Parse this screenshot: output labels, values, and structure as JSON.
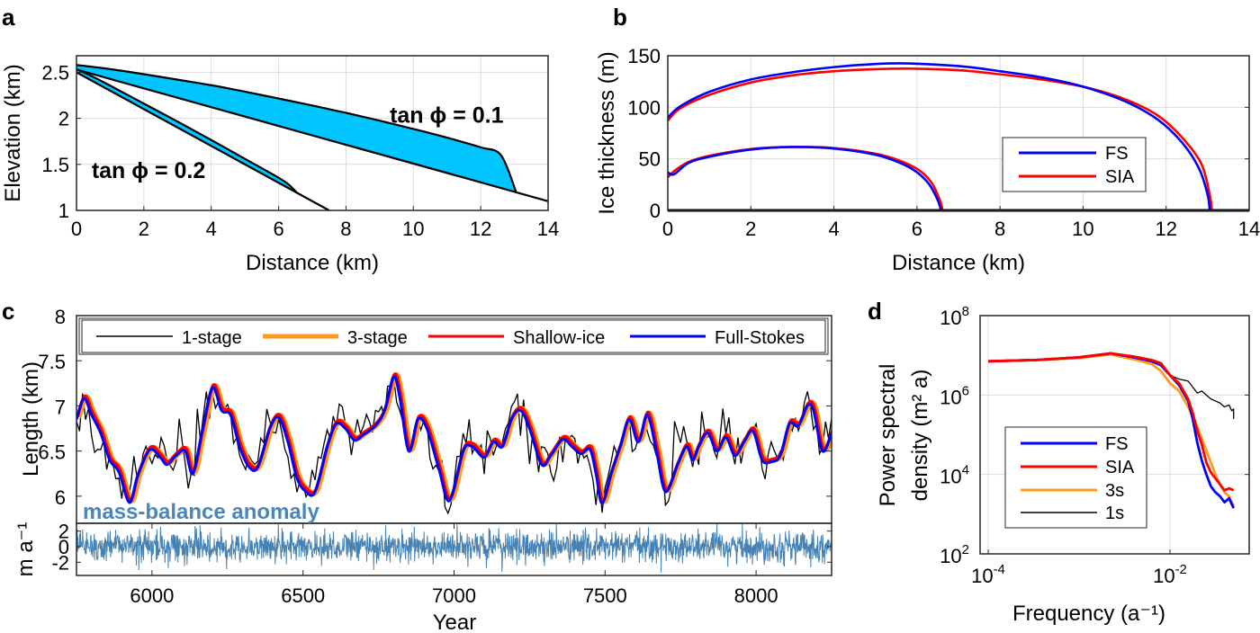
{
  "figure": {
    "panel_labels": [
      "a",
      "b",
      "c",
      "d"
    ]
  },
  "chart_data": [
    {
      "panel": "a",
      "type": "area",
      "xlabel": "Distance (km)",
      "ylabel": "Elevation (km)",
      "xlim": [
        0,
        14
      ],
      "ylim": [
        1,
        2.68
      ],
      "xticks": [
        0,
        2,
        4,
        6,
        8,
        10,
        12,
        14
      ],
      "xtick_labels": [
        "0",
        "2",
        "4",
        "6",
        "8",
        "10",
        "12",
        "14"
      ],
      "yticks": [
        1,
        1.5,
        2,
        2.5
      ],
      "ytick_labels": [
        "1",
        "1.5",
        "2",
        "2.5"
      ],
      "grid": true,
      "fill_color": "#00c5ff",
      "annotations": [
        {
          "text": "tan ϕ = 0.1",
          "x": 9.3,
          "y": 1.95
        },
        {
          "text": "tan ϕ = 0.2",
          "x": 0.45,
          "y": 1.35
        }
      ],
      "glaciers": [
        {
          "name": "tan phi = 0.1",
          "bed": {
            "x": [
              0,
              14
            ],
            "y": [
              2.53,
              1.1
            ]
          },
          "surface": {
            "x": [
              0,
              1,
              2,
              3,
              4,
              5,
              6,
              7,
              8,
              9,
              10,
              11,
              12,
              12.6,
              13.05
            ],
            "y": [
              2.58,
              2.535,
              2.48,
              2.42,
              2.36,
              2.29,
              2.215,
              2.14,
              2.06,
              1.975,
              1.885,
              1.79,
              1.685,
              1.6,
              1.2
            ]
          }
        },
        {
          "name": "tan phi = 0.2",
          "bed": {
            "x": [
              0,
              7.5
            ],
            "y": [
              2.5,
              1.0
            ]
          },
          "surface": {
            "x": [
              0,
              0.5,
              1,
              2,
              3,
              4,
              5,
              6,
              6.3,
              6.55
            ],
            "y": [
              2.535,
              2.45,
              2.355,
              2.16,
              1.965,
              1.765,
              1.56,
              1.355,
              1.28,
              1.19
            ]
          }
        }
      ]
    },
    {
      "panel": "b",
      "type": "line",
      "xlabel": "Distance (km)",
      "ylabel": "Ice thickness (m)",
      "xlim": [
        0,
        14
      ],
      "ylim": [
        0,
        150
      ],
      "xticks": [
        0,
        2,
        4,
        6,
        8,
        10,
        12,
        14
      ],
      "xtick_labels": [
        "0",
        "2",
        "4",
        "6",
        "8",
        "10",
        "12",
        "14"
      ],
      "yticks": [
        0,
        50,
        100,
        150
      ],
      "ytick_labels": [
        "0",
        "50",
        "100",
        "150"
      ],
      "grid": true,
      "legend": {
        "placement": "lower-right",
        "entries": [
          {
            "label": "FS",
            "color": "#0000ff"
          },
          {
            "label": "SIA",
            "color": "#ff0000"
          }
        ]
      },
      "series": [
        {
          "name": "FS (tan phi = 0.1)",
          "color": "#0000ff",
          "x": [
            0,
            0.3,
            1,
            2,
            3,
            4,
            5,
            5.8,
            7,
            8,
            9,
            10,
            11,
            11.8,
            12.4,
            12.8,
            13.0,
            13.05
          ],
          "y": [
            90,
            101,
            115,
            127,
            134,
            139,
            142,
            142.5,
            140,
            135,
            129,
            120,
            106,
            88,
            65,
            40,
            15,
            0
          ]
        },
        {
          "name": "SIA (tan phi = 0.1)",
          "color": "#ff0000",
          "x": [
            0,
            0.3,
            1,
            2,
            3,
            4,
            5,
            5.8,
            7,
            8,
            9,
            10,
            11,
            11.8,
            12.4,
            12.85,
            13.05,
            13.1
          ],
          "y": [
            87,
            99,
            112,
            124,
            131,
            135,
            137,
            137.5,
            136,
            132,
            127,
            120,
            108,
            92,
            70,
            45,
            15,
            0
          ]
        },
        {
          "name": "FS (tan phi = 0.2)",
          "color": "#0000ff",
          "x": [
            0,
            0.15,
            0.5,
            1,
            2,
            3,
            4,
            5,
            5.6,
            6.0,
            6.3,
            6.5,
            6.58
          ],
          "y": [
            37,
            35,
            46,
            52,
            59,
            61.5,
            60,
            54,
            46,
            37,
            25,
            10,
            0
          ]
        },
        {
          "name": "SIA (tan phi = 0.2)",
          "color": "#ff0000",
          "x": [
            0,
            0.15,
            0.5,
            1,
            2,
            3,
            4,
            5,
            5.6,
            6.05,
            6.35,
            6.55,
            6.62
          ],
          "y": [
            32,
            38,
            47,
            53,
            59.5,
            61.5,
            60.5,
            55,
            48,
            39,
            27,
            10,
            0
          ]
        }
      ]
    },
    {
      "panel": "c",
      "type": "line",
      "xlabel": "Year",
      "ylabel": "Length (km)",
      "xlim": [
        5750,
        8250
      ],
      "ylim": [
        5.7,
        8
      ],
      "xticks": [
        6000,
        6500,
        7000,
        7500,
        8000
      ],
      "xtick_labels": [
        "6000",
        "6500",
        "7000",
        "7500",
        "8000"
      ],
      "yticks": [
        6,
        6.5,
        7,
        7.5,
        8
      ],
      "ytick_labels": [
        "6",
        "6.5",
        "7",
        "7.5",
        "8"
      ],
      "grid": false,
      "legend": {
        "placement": "top",
        "entries": [
          {
            "label": "1-stage",
            "color": "#000000"
          },
          {
            "label": "3-stage",
            "color": "#ff9a1f"
          },
          {
            "label": "Shallow-ice",
            "color": "#ff0000"
          },
          {
            "label": "Full-Stokes",
            "color": "#0000ff"
          }
        ]
      },
      "full_stokes": {
        "x": [
          5750,
          5775,
          5800,
          5830,
          5860,
          5890,
          5925,
          5950,
          5980,
          6000,
          6030,
          6050,
          6080,
          6110,
          6135,
          6165,
          6200,
          6230,
          6260,
          6290,
          6320,
          6350,
          6390,
          6420,
          6450,
          6480,
          6510,
          6540,
          6580,
          6610,
          6640,
          6670,
          6700,
          6740,
          6770,
          6800,
          6820,
          6850,
          6880,
          6910,
          6950,
          6985,
          7030,
          7060,
          7100,
          7130,
          7160,
          7190,
          7220,
          7250,
          7290,
          7320,
          7360,
          7390,
          7420,
          7450,
          7470,
          7490,
          7520,
          7550,
          7580,
          7610,
          7640,
          7670,
          7700,
          7740,
          7770,
          7790,
          7810,
          7840,
          7870,
          7900,
          7930,
          7960,
          7990,
          8020,
          8050,
          8080,
          8110,
          8140,
          8170,
          8190,
          8220,
          8250
        ],
        "y": [
          6.85,
          7.08,
          6.9,
          6.7,
          6.4,
          6.27,
          5.93,
          6.2,
          6.45,
          6.52,
          6.42,
          6.35,
          6.45,
          6.5,
          6.25,
          6.7,
          7.2,
          6.95,
          6.9,
          6.55,
          6.33,
          6.32,
          6.75,
          6.87,
          6.6,
          6.2,
          6.05,
          6.05,
          6.55,
          6.8,
          6.75,
          6.62,
          6.68,
          6.78,
          6.95,
          7.32,
          7.1,
          6.5,
          6.85,
          6.75,
          6.3,
          5.95,
          6.5,
          6.55,
          6.43,
          6.6,
          6.55,
          6.85,
          6.95,
          6.75,
          6.35,
          6.45,
          6.63,
          6.55,
          6.47,
          6.52,
          6.25,
          5.92,
          6.25,
          6.55,
          6.85,
          6.6,
          6.9,
          6.5,
          6.05,
          6.35,
          6.55,
          6.4,
          6.55,
          6.7,
          6.5,
          6.65,
          6.45,
          6.6,
          6.72,
          6.4,
          6.38,
          6.45,
          6.8,
          6.78,
          7.0,
          6.95,
          6.5,
          6.7
        ]
      },
      "shallow_ice_offset_km": 0.03,
      "three_stage_lag_years": 8,
      "one_stage_noise_amplitude_km": 0.22,
      "annotation": "mass-balance anomaly",
      "mass_balance": {
        "ylabel": "m a⁻¹",
        "ylim": [
          -3.7,
          3.0
        ],
        "yticks": [
          -2,
          0,
          2
        ],
        "ytick_labels": [
          "-2",
          "0",
          "2"
        ],
        "color": "#4682b4",
        "std_m_per_a": 1.0
      }
    },
    {
      "panel": "d",
      "type": "line",
      "xscale": "log",
      "yscale": "log",
      "xlabel": "Frequency (a⁻¹)",
      "ylabel_line1": "Power spectral",
      "ylabel_line2": "density (m² a)",
      "xlim_log10": [
        -4.05,
        -0.98
      ],
      "ylim_log10": [
        2,
        8
      ],
      "xticks_log10": [
        -4,
        -2
      ],
      "xtick_labels": [
        {
          "base": "10",
          "exp": "-4"
        },
        {
          "base": "10",
          "exp": "-2"
        }
      ],
      "yticks_log10": [
        2,
        4,
        6,
        8
      ],
      "ytick_labels": [
        {
          "base": "10",
          "exp": "2"
        },
        {
          "base": "10",
          "exp": "4"
        },
        {
          "base": "10",
          "exp": "6"
        },
        {
          "base": "10",
          "exp": "8"
        }
      ],
      "grid": true,
      "legend": {
        "placement": "lower-left",
        "entries": [
          {
            "label": "FS",
            "color": "#0000ff"
          },
          {
            "label": "SIA",
            "color": "#ff0000"
          },
          {
            "label": "3s",
            "color": "#ff9a1f"
          },
          {
            "label": "1s",
            "color": "#000000"
          }
        ]
      },
      "series": [
        {
          "name": "FS",
          "color": "#0000ff",
          "log10_f": [
            -4,
            -3.5,
            -3,
            -2.65,
            -2.4,
            -2.2,
            -2.1,
            -2.0,
            -1.9,
            -1.8,
            -1.75,
            -1.7,
            -1.65,
            -1.6,
            -1.55,
            -1.5,
            -1.45,
            -1.4,
            -1.35,
            -1.3
          ],
          "log10_psd": [
            6.85,
            6.88,
            6.95,
            7.05,
            6.95,
            6.85,
            6.75,
            6.5,
            6.25,
            5.85,
            5.4,
            4.8,
            4.35,
            4.0,
            3.7,
            3.55,
            3.45,
            3.3,
            3.4,
            3.15
          ]
        },
        {
          "name": "SIA",
          "color": "#ff0000",
          "log10_f": [
            -4,
            -3.5,
            -3,
            -2.65,
            -2.4,
            -2.2,
            -2.1,
            -2.0,
            -1.9,
            -1.8,
            -1.75,
            -1.7,
            -1.65,
            -1.6,
            -1.55,
            -1.5,
            -1.45,
            -1.4,
            -1.35,
            -1.3
          ],
          "log10_psd": [
            6.85,
            6.88,
            6.95,
            7.05,
            6.97,
            6.88,
            6.8,
            6.5,
            6.3,
            5.9,
            5.55,
            5.1,
            4.75,
            4.3,
            4.05,
            3.9,
            3.75,
            3.6,
            3.65,
            3.6
          ]
        },
        {
          "name": "3s",
          "color": "#ff9a1f",
          "log10_f": [
            -4,
            -3.5,
            -3,
            -2.65,
            -2.4,
            -2.2,
            -2.1,
            -2.0,
            -1.9,
            -1.8,
            -1.75,
            -1.7,
            -1.65,
            -1.6,
            -1.55,
            -1.5,
            -1.45,
            -1.4,
            -1.35,
            -1.3
          ],
          "log10_psd": [
            6.85,
            6.88,
            6.93,
            7.02,
            6.9,
            6.78,
            6.6,
            6.3,
            6.1,
            5.7,
            5.45,
            5.2,
            4.9,
            4.6,
            4.3,
            4.0,
            3.75,
            3.55,
            3.45,
            3.2
          ]
        },
        {
          "name": "1s",
          "color": "#000000",
          "log10_f": [
            -4,
            -3.5,
            -3,
            -2.65,
            -2.4,
            -2.2,
            -2.1,
            -2.0,
            -1.9,
            -1.8,
            -1.75,
            -1.7,
            -1.65,
            -1.6,
            -1.55,
            -1.5,
            -1.45,
            -1.4,
            -1.35,
            -1.32,
            -1.3,
            -1.3
          ],
          "log10_psd": [
            6.85,
            6.86,
            6.92,
            7.02,
            6.95,
            6.85,
            6.75,
            6.5,
            6.4,
            6.35,
            6.2,
            6.05,
            6.1,
            6.0,
            5.9,
            5.85,
            5.8,
            5.7,
            5.75,
            5.6,
            5.65,
            5.4
          ]
        }
      ]
    }
  ]
}
